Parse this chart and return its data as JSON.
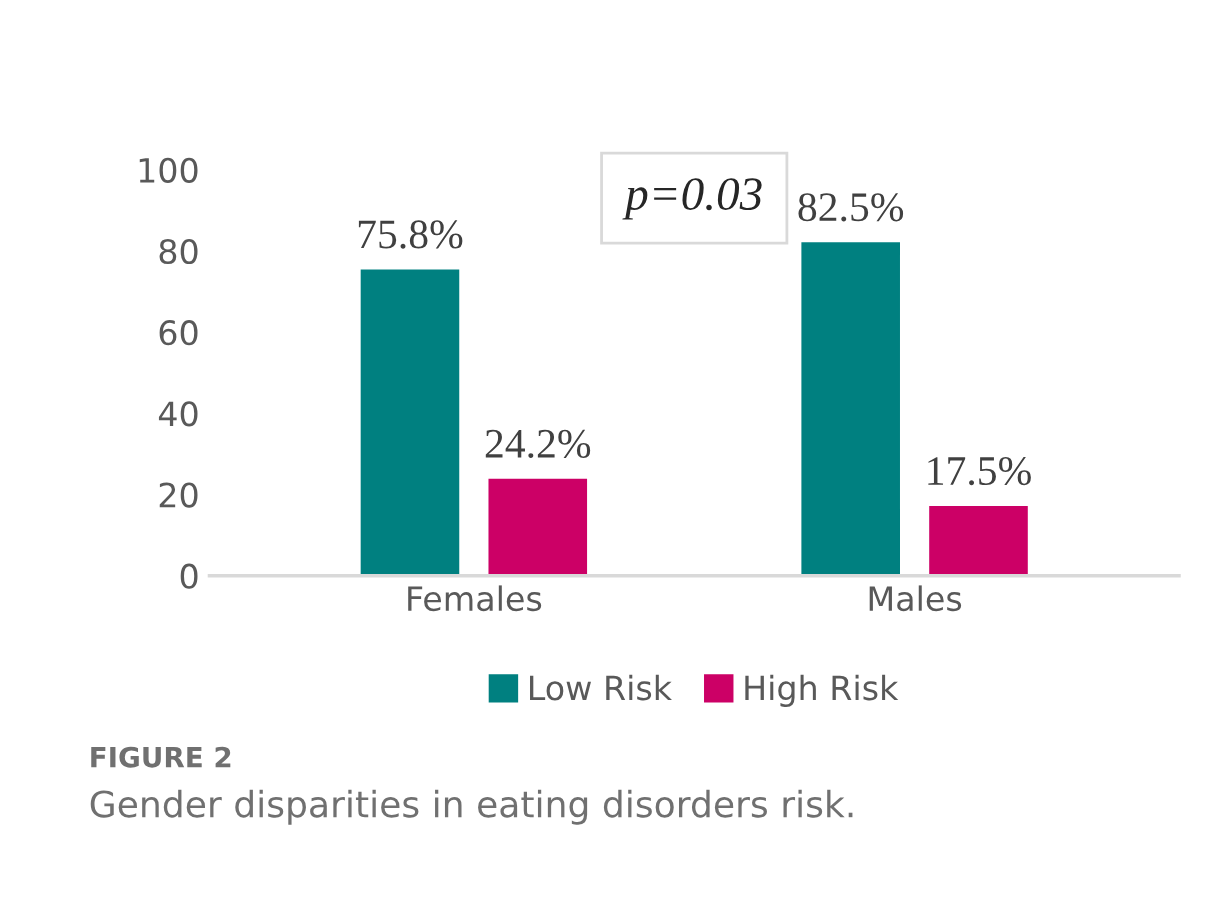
{
  "chart_data": {
    "type": "bar",
    "categories": [
      "Females",
      "Males"
    ],
    "series": [
      {
        "name": "Low Risk",
        "color": "#008080",
        "values": [
          75.8,
          82.5
        ],
        "value_labels": [
          "75.8%",
          "82.5%"
        ]
      },
      {
        "name": "High Risk",
        "color": "#cc0066",
        "values": [
          24.2,
          17.5
        ],
        "value_labels": [
          "24.2%",
          "17.5%"
        ]
      }
    ],
    "ylim": [
      0,
      100
    ],
    "yticks": [
      0,
      20,
      40,
      60,
      80,
      100
    ],
    "grid": false,
    "legend": "bottom",
    "annotations": [
      "p=0.03",
      "FIGURE 2",
      "Gender disparities in eating disorders risk."
    ]
  }
}
